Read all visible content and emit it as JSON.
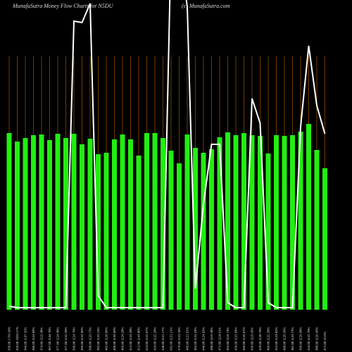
{
  "chart_data": {
    "type": "bar",
    "title": "MunafaSutra  Money Flow  Charts for N5DU",
    "subtitle": "(c) MunafaSutra.com",
    "categories": [
      "335.00 1733.18%",
      "326.00 1533.27%",
      "344.00 1137.32%",
      "365.00 1124.69%",
      "374.00 1119.38%",
      "357.00 1134.78%",
      "377.00 1124.38%",
      "377.00 1122.28%",
      "396.00 1124.78%",
      "399.00 1122.99%",
      "398.00 1123.73%",
      "392.00 1123.13%",
      "402.00 1126.09%",
      "405.00 1134.05%",
      "403.00 1124.28%",
      "412.00 1124.28%",
      "412.00 1143.86%",
      "424.00 1122.07%",
      "424.00 1122.28%",
      "436.00 1121.17%",
      "431.00 1121.21%",
      "479.00 1123.18%",
      "465.00 1121.51%",
      "453.00 1124.29%",
      "446.00 1124.63%",
      "468.00 1119.48%",
      "471.00 1118.61%",
      "494.00 1115.73%",
      "426.00 1122.69%",
      "459.00 1126.57%",
      "433.00 1115.55%",
      "429.00 1128.78%",
      "406.00 1122.28%",
      "414.00 1123.02%",
      "400.00 1125.39%",
      "381.00 1123.73%",
      "399.00 1129.58%",
      "416.00 1122.70%",
      "388.00 1129.43%",
      "371.00 1119%"
    ],
    "series": [
      {
        "type": "bar",
        "color": "#22ee11",
        "values": [
          251,
          239,
          244,
          248,
          249,
          241,
          250,
          244,
          250,
          235,
          243,
          221,
          223,
          242,
          249,
          242,
          219,
          251,
          251,
          244,
          226,
          208,
          249,
          230,
          223,
          228,
          245,
          252,
          248,
          251,
          248,
          247,
          222,
          248,
          247,
          248,
          253,
          264,
          227,
          201
        ]
      },
      {
        "type": "line",
        "color": "#ffffff",
        "values": [
          5,
          3,
          3,
          3,
          3,
          3,
          3,
          3,
          410,
          408,
          435,
          20,
          3,
          3,
          3,
          3,
          3,
          3,
          3,
          3,
          520,
          520,
          430,
          30,
          150,
          235,
          235,
          10,
          3,
          3,
          300,
          265,
          10,
          3,
          3,
          3,
          260,
          375,
          290,
          250
        ]
      }
    ],
    "ylim": [
      0,
      440
    ],
    "grid": true,
    "grid_color": "#8a4a00",
    "background": "#000000"
  }
}
